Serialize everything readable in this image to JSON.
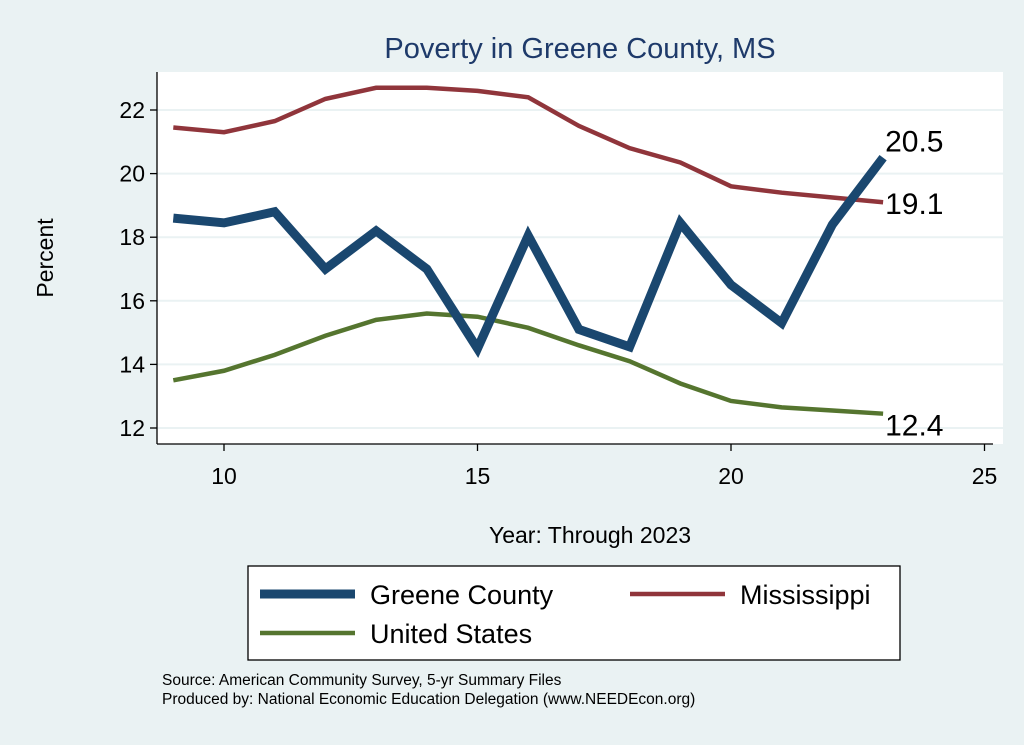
{
  "chart_data": {
    "type": "line",
    "title": "Poverty in Greene County, MS",
    "xlabel": "Year: Through 2023",
    "ylabel": "Percent",
    "xlim": [
      8.7,
      25.4
    ],
    "ylim": [
      11.5,
      23.1
    ],
    "xticks": [
      10,
      15,
      20,
      25
    ],
    "yticks": [
      12,
      14,
      16,
      18,
      20,
      22
    ],
    "grid": true,
    "legend_placement": "bottom",
    "x": [
      9,
      10,
      11,
      12,
      13,
      14,
      15,
      16,
      17,
      18,
      19,
      20,
      21,
      22,
      23
    ],
    "series": [
      {
        "name": "Greene County",
        "color": "#1a476f",
        "values": [
          18.6,
          18.45,
          18.8,
          17.0,
          18.2,
          17.0,
          14.5,
          18.05,
          15.1,
          14.55,
          18.45,
          16.5,
          15.3,
          18.4,
          20.5
        ],
        "end_label": "20.5"
      },
      {
        "name": "Mississippi",
        "color": "#90353b",
        "values": [
          21.45,
          21.3,
          21.65,
          22.35,
          22.7,
          22.7,
          22.6,
          22.4,
          21.5,
          20.8,
          20.35,
          19.6,
          19.4,
          19.25,
          19.1
        ],
        "end_label": "19.1"
      },
      {
        "name": "United States",
        "color": "#55752f",
        "values": [
          13.5,
          13.8,
          14.3,
          14.9,
          15.4,
          15.6,
          15.5,
          15.15,
          14.6,
          14.1,
          13.4,
          12.85,
          12.65,
          12.55,
          12.45
        ],
        "end_label": "12.4"
      }
    ]
  },
  "notes": {
    "source": "Source: American Community Survey, 5-yr Summary Files",
    "produced": "Produced by: National Economic Education Delegation (www.NEEDEcon.org)"
  }
}
